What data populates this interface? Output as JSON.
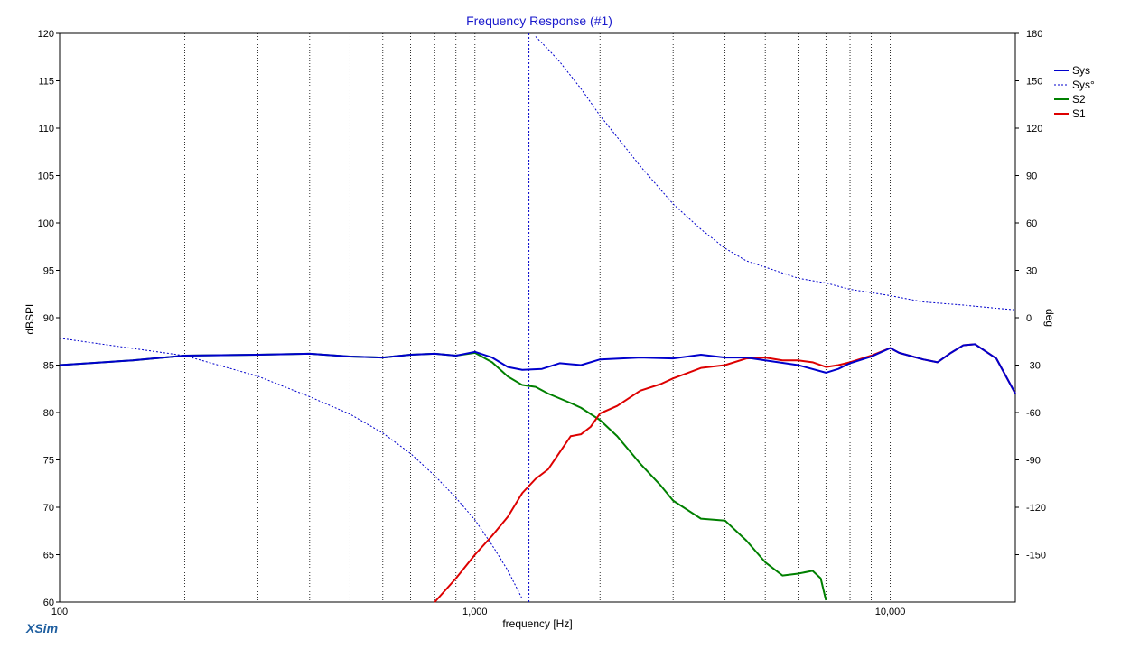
{
  "chart_data": {
    "type": "line",
    "title": "Frequency Response (#1)",
    "xlabel": "frequency [Hz]",
    "ylabel": "dBSPL",
    "ylabel_right": "deg",
    "x_scale": "log",
    "xlim": [
      100,
      20000
    ],
    "ylim": [
      60,
      120
    ],
    "ylim_right": [
      -180,
      180
    ],
    "x_tick_labels": [
      {
        "x": 100,
        "label": "100"
      },
      {
        "x": 1000,
        "label": "1,000"
      },
      {
        "x": 10000,
        "label": "10,000"
      }
    ],
    "y_ticks": [
      60,
      65,
      70,
      75,
      80,
      85,
      90,
      95,
      100,
      105,
      110,
      115,
      120
    ],
    "y_ticks_right": [
      -150,
      -120,
      -90,
      -60,
      -30,
      0,
      30,
      60,
      90,
      120,
      150,
      180
    ],
    "grid": true,
    "legend_position": "top-right",
    "series": [
      {
        "name": "Sys",
        "color": "#0000cc",
        "axis": "left",
        "style": "solid",
        "points": [
          [
            100,
            85
          ],
          [
            150,
            85.5
          ],
          [
            200,
            86
          ],
          [
            300,
            86.1
          ],
          [
            400,
            86.2
          ],
          [
            500,
            85.9
          ],
          [
            600,
            85.8
          ],
          [
            700,
            86.1
          ],
          [
            800,
            86.2
          ],
          [
            900,
            86
          ],
          [
            1000,
            86.4
          ],
          [
            1100,
            85.8
          ],
          [
            1200,
            84.8
          ],
          [
            1300,
            84.5
          ],
          [
            1450,
            84.6
          ],
          [
            1600,
            85.2
          ],
          [
            1800,
            85
          ],
          [
            2000,
            85.6
          ],
          [
            2500,
            85.8
          ],
          [
            3000,
            85.7
          ],
          [
            3500,
            86.1
          ],
          [
            4000,
            85.8
          ],
          [
            4500,
            85.8
          ],
          [
            5000,
            85.5
          ],
          [
            6000,
            85
          ],
          [
            7000,
            84.2
          ],
          [
            7500,
            84.6
          ],
          [
            8000,
            85.2
          ],
          [
            9000,
            85.9
          ],
          [
            10000,
            86.8
          ],
          [
            10500,
            86.3
          ],
          [
            12000,
            85.6
          ],
          [
            13000,
            85.3
          ],
          [
            14000,
            86.3
          ],
          [
            15000,
            87.1
          ],
          [
            16000,
            87.2
          ],
          [
            18000,
            85.7
          ],
          [
            20000,
            82
          ]
        ]
      },
      {
        "name": "Sys°",
        "color": "#0000cc",
        "axis": "right",
        "style": "dashed",
        "points": [
          [
            100,
            -13
          ],
          [
            200,
            -24
          ],
          [
            300,
            -37
          ],
          [
            400,
            -50
          ],
          [
            500,
            -61
          ],
          [
            600,
            -73
          ],
          [
            700,
            -86
          ],
          [
            800,
            -100
          ],
          [
            900,
            -114
          ],
          [
            1000,
            -128
          ],
          [
            1100,
            -144
          ],
          [
            1200,
            -160
          ],
          [
            1300,
            -178
          ],
          [
            1400,
            178
          ],
          [
            1500,
            170
          ],
          [
            1600,
            162
          ],
          [
            1800,
            145
          ],
          [
            2000,
            128
          ],
          [
            2500,
            96
          ],
          [
            3000,
            72
          ],
          [
            3500,
            56
          ],
          [
            4000,
            44
          ],
          [
            4500,
            36
          ],
          [
            5000,
            32
          ],
          [
            6000,
            25
          ],
          [
            7000,
            22
          ],
          [
            8000,
            18
          ],
          [
            10000,
            14
          ],
          [
            12000,
            10
          ],
          [
            15000,
            8
          ],
          [
            18000,
            6
          ],
          [
            20000,
            5
          ]
        ]
      },
      {
        "name": "S2",
        "color": "#008000",
        "axis": "left",
        "style": "solid",
        "points": [
          [
            100,
            85
          ],
          [
            150,
            85.5
          ],
          [
            200,
            86
          ],
          [
            300,
            86.1
          ],
          [
            400,
            86.2
          ],
          [
            500,
            85.9
          ],
          [
            600,
            85.8
          ],
          [
            700,
            86.1
          ],
          [
            800,
            86.2
          ],
          [
            900,
            86
          ],
          [
            1000,
            86.3
          ],
          [
            1100,
            85.3
          ],
          [
            1200,
            83.8
          ],
          [
            1300,
            82.9
          ],
          [
            1400,
            82.7
          ],
          [
            1500,
            82
          ],
          [
            1700,
            81
          ],
          [
            1800,
            80.5
          ],
          [
            2000,
            79.2
          ],
          [
            2200,
            77.5
          ],
          [
            2500,
            74.6
          ],
          [
            2800,
            72.3
          ],
          [
            3000,
            70.7
          ],
          [
            3500,
            68.8
          ],
          [
            4000,
            68.6
          ],
          [
            4500,
            66.5
          ],
          [
            5000,
            64.2
          ],
          [
            5500,
            62.8
          ],
          [
            6000,
            63
          ],
          [
            6500,
            63.3
          ],
          [
            6800,
            62.5
          ],
          [
            7000,
            60.2
          ]
        ]
      },
      {
        "name": "S1",
        "color": "#dd0000",
        "axis": "left",
        "style": "solid",
        "points": [
          [
            800,
            60
          ],
          [
            900,
            62.5
          ],
          [
            1000,
            65
          ],
          [
            1100,
            67
          ],
          [
            1200,
            69
          ],
          [
            1300,
            71.5
          ],
          [
            1400,
            73
          ],
          [
            1500,
            74
          ],
          [
            1700,
            77.5
          ],
          [
            1800,
            77.7
          ],
          [
            1900,
            78.5
          ],
          [
            2000,
            79.9
          ],
          [
            2200,
            80.7
          ],
          [
            2500,
            82.3
          ],
          [
            2800,
            83
          ],
          [
            3000,
            83.6
          ],
          [
            3500,
            84.7
          ],
          [
            4000,
            85
          ],
          [
            4500,
            85.7
          ],
          [
            5000,
            85.8
          ],
          [
            5500,
            85.5
          ],
          [
            6000,
            85.5
          ],
          [
            6500,
            85.3
          ],
          [
            7000,
            84.8
          ],
          [
            7500,
            85
          ],
          [
            8000,
            85.3
          ],
          [
            9000,
            86
          ],
          [
            10000,
            86.8
          ],
          [
            10500,
            86.3
          ],
          [
            12000,
            85.6
          ],
          [
            13000,
            85.3
          ],
          [
            14000,
            86.3
          ],
          [
            15000,
            87.1
          ],
          [
            16000,
            87.2
          ],
          [
            18000,
            85.7
          ],
          [
            20000,
            82
          ]
        ]
      }
    ]
  },
  "footer": {
    "brand": "XSim"
  }
}
